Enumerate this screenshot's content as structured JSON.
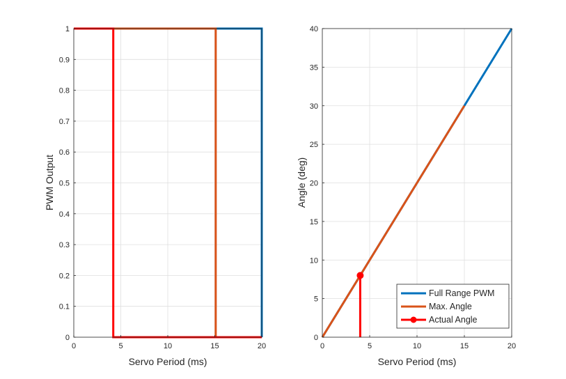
{
  "chart_data": [
    {
      "type": "line",
      "title": "",
      "xlabel": "Servo Period (ms)",
      "ylabel": "PWM Output",
      "xlim": [
        0,
        20
      ],
      "ylim": [
        0,
        1
      ],
      "xticks": [
        "0",
        "5",
        "10",
        "15",
        "20"
      ],
      "yticks": [
        "0",
        "0.1",
        "0.2",
        "0.3",
        "0.4",
        "0.5",
        "0.6",
        "0.7",
        "0.8",
        "0.9",
        "1"
      ],
      "grid": true,
      "series": [
        {
          "color": "#0072BD",
          "x": [
            0,
            20,
            20
          ],
          "y": [
            1,
            1,
            0
          ]
        },
        {
          "color": "#D95319",
          "x": [
            0,
            15.1,
            15.1,
            20
          ],
          "y": [
            1,
            1,
            0,
            0
          ]
        },
        {
          "color": "#FF0000",
          "x": [
            0,
            4.2,
            4.2,
            20
          ],
          "y": [
            1,
            1,
            0,
            0
          ]
        }
      ]
    },
    {
      "type": "line",
      "title": "",
      "xlabel": "Servo Period (ms)",
      "ylabel": "Angle (deg)",
      "xlim": [
        0,
        20
      ],
      "ylim": [
        0,
        40
      ],
      "xticks": [
        "0",
        "5",
        "10",
        "15",
        "20"
      ],
      "yticks": [
        "0",
        "5",
        "10",
        "15",
        "20",
        "25",
        "30",
        "35",
        "40"
      ],
      "grid": true,
      "legend": "bottom-right",
      "series": [
        {
          "name": "Full Range PWM",
          "color": "#0072BD",
          "x": [
            0,
            20
          ],
          "y": [
            0,
            40
          ]
        },
        {
          "name": "Max. Angle",
          "color": "#D95319",
          "x": [
            0,
            15
          ],
          "y": [
            0,
            30
          ]
        },
        {
          "name": "Actual Angle",
          "color": "#FF0000",
          "x": [
            4,
            4
          ],
          "y": [
            0,
            8
          ],
          "marker_x": 4,
          "marker_y": 8
        }
      ]
    }
  ]
}
